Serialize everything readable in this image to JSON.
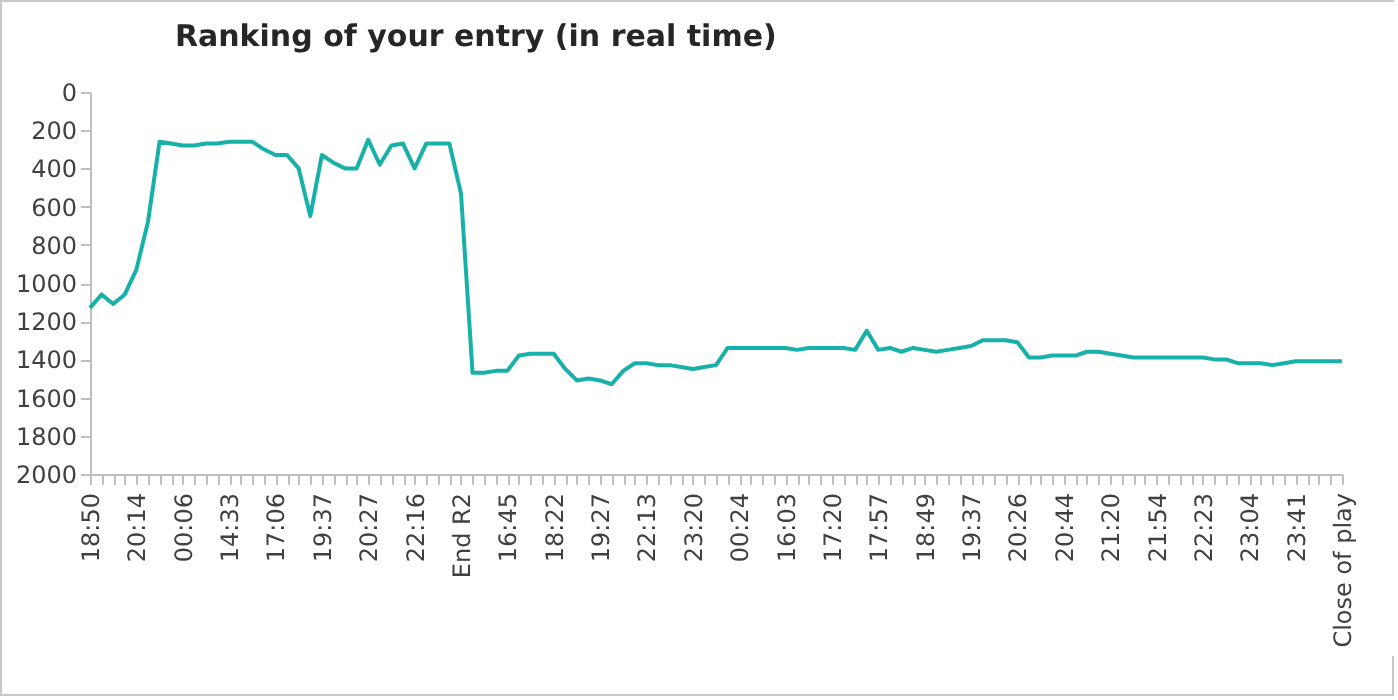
{
  "chart_data": {
    "type": "line",
    "title": "Ranking of your entry (in real time)",
    "categories": [
      "18:50",
      null,
      null,
      null,
      "20:14",
      null,
      null,
      null,
      "00:06",
      null,
      null,
      null,
      "14:33",
      null,
      null,
      null,
      "17:06",
      null,
      null,
      null,
      "19:37",
      null,
      null,
      null,
      "20:27",
      null,
      null,
      null,
      "22:16",
      null,
      null,
      null,
      "End R2",
      null,
      null,
      null,
      "16:45",
      null,
      null,
      null,
      "18:22",
      null,
      null,
      null,
      "19:27",
      null,
      null,
      null,
      "22:13",
      null,
      null,
      null,
      "23:20",
      null,
      null,
      null,
      "00:24",
      null,
      null,
      null,
      "16:03",
      null,
      null,
      null,
      "17:20",
      null,
      null,
      null,
      "17:57",
      null,
      null,
      null,
      "18:49",
      null,
      null,
      null,
      "19:37",
      null,
      null,
      null,
      "20:26",
      null,
      null,
      null,
      "20:44",
      null,
      null,
      null,
      "21:20",
      null,
      null,
      null,
      "21:54",
      null,
      null,
      null,
      "22:23",
      null,
      null,
      null,
      "23:04",
      null,
      null,
      null,
      "23:41",
      null,
      null,
      null,
      "Close of play"
    ],
    "series": [
      {
        "color": "#17b1a9",
        "values": [
          1130,
          1060,
          1110,
          1060,
          930,
          680,
          260,
          270,
          280,
          280,
          270,
          270,
          260,
          260,
          260,
          300,
          330,
          330,
          400,
          650,
          330,
          370,
          400,
          400,
          250,
          380,
          280,
          270,
          400,
          270,
          270,
          270,
          530,
          1470,
          1470,
          1460,
          1460,
          1380,
          1370,
          1370,
          1370,
          1450,
          1510,
          1500,
          1510,
          1530,
          1460,
          1420,
          1420,
          1430,
          1430,
          1440,
          1450,
          1440,
          1430,
          1340,
          1340,
          1340,
          1340,
          1340,
          1340,
          1350,
          1340,
          1340,
          1340,
          1340,
          1350,
          1250,
          1350,
          1340,
          1360,
          1340,
          1350,
          1360,
          1350,
          1340,
          1330,
          1300,
          1300,
          1300,
          1310,
          1390,
          1390,
          1380,
          1380,
          1380,
          1360,
          1360,
          1370,
          1380,
          1390,
          1390,
          1390,
          1390,
          1390,
          1390,
          1390,
          1400,
          1400,
          1420,
          1420,
          1420,
          1430,
          1420,
          1410,
          1410,
          1410,
          1410,
          1410
        ]
      }
    ],
    "ylim": [
      2000,
      0
    ],
    "yticks": [
      0,
      200,
      400,
      600,
      800,
      1000,
      1200,
      1400,
      1600,
      1800,
      2000
    ],
    "grid": false,
    "marker": "none"
  }
}
